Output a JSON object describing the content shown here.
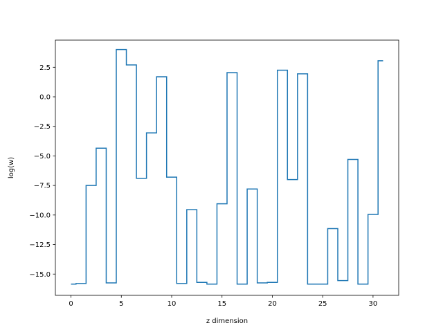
{
  "chart_data": {
    "type": "line",
    "drawstyle": "steps-mid",
    "title": "",
    "xlabel": "z dimension",
    "ylabel": "log(w)",
    "xlim": [
      -1.55,
      32.55
    ],
    "ylim": [
      -16.8,
      4.8
    ],
    "grid": false,
    "color": "#1f77b4",
    "xticks": [
      0,
      5,
      10,
      15,
      20,
      25,
      30
    ],
    "xtick_labels": [
      "0",
      "5",
      "10",
      "15",
      "20",
      "25",
      "30"
    ],
    "yticks": [
      2.5,
      0,
      -2.5,
      -5,
      -7.5,
      -10,
      -12.5,
      -15
    ],
    "ytick_labels": [
      "2.5",
      "0.0",
      "−2.5",
      "−5.0",
      "−7.5",
      "−10.0",
      "−12.5",
      "−15.0"
    ],
    "x": [
      0,
      1,
      2,
      3,
      4,
      5,
      6,
      7,
      8,
      9,
      10,
      11,
      12,
      13,
      14,
      15,
      16,
      17,
      18,
      19,
      20,
      21,
      22,
      23,
      24,
      25,
      26,
      27,
      28,
      29,
      30,
      31
    ],
    "values": [
      -15.85,
      -15.8,
      -7.5,
      -4.35,
      -15.75,
      4.0,
      2.7,
      -6.9,
      -3.05,
      1.7,
      -6.8,
      -15.8,
      -9.55,
      -15.7,
      -15.85,
      -9.05,
      2.05,
      -15.85,
      -7.8,
      -15.75,
      -15.7,
      2.25,
      -7.0,
      1.95,
      -15.85,
      -15.85,
      -11.15,
      -15.55,
      -5.3,
      -15.85,
      -9.95,
      3.05
    ]
  }
}
